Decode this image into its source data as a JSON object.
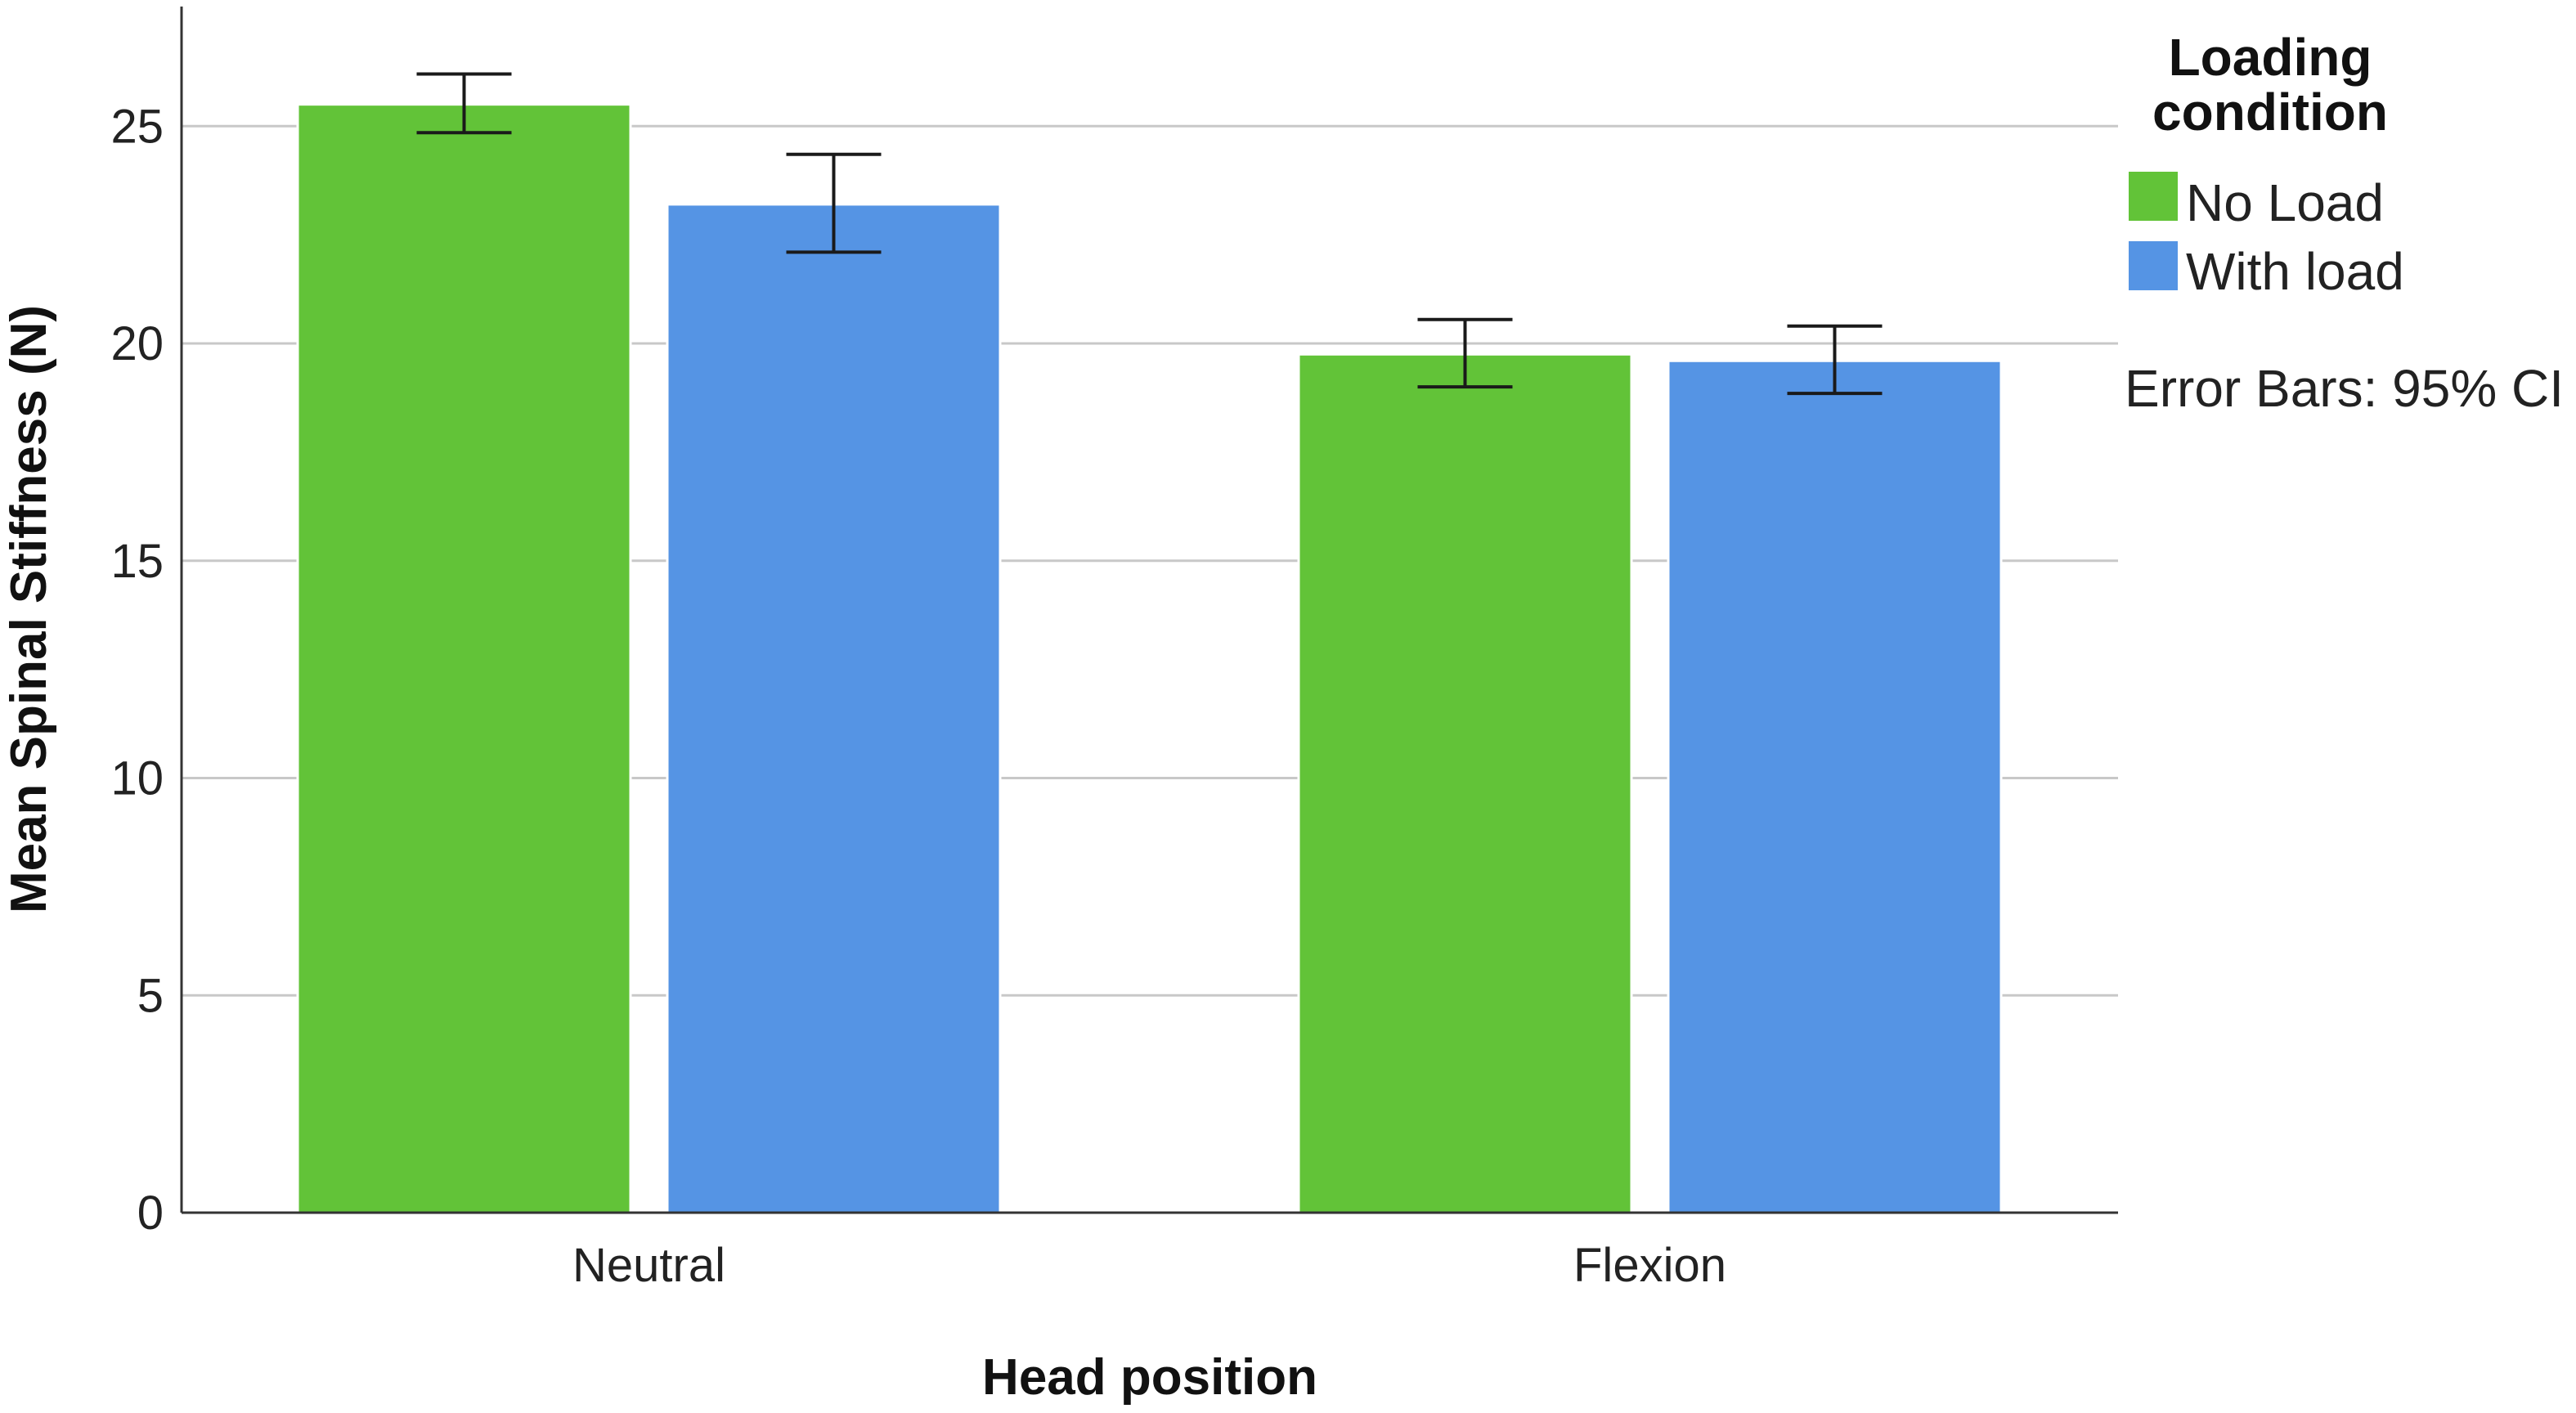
{
  "chart_data": {
    "type": "bar",
    "xlabel": "Head position",
    "ylabel": "Mean Spinal Stiffness (N)",
    "categories": [
      "Neutral",
      "Flexion"
    ],
    "ylim": [
      0,
      28
    ],
    "yticks": [
      "0",
      "5",
      "10",
      "15",
      "20",
      "25"
    ],
    "grid": true,
    "legend": {
      "title_lines": [
        "Loading",
        "condition"
      ],
      "placement": "top-right"
    },
    "series": [
      {
        "name": "No Load",
        "color": "#62c338",
        "values": [
          25.5,
          19.75
        ],
        "ci_low": [
          24.85,
          19.0
        ],
        "ci_high": [
          26.2,
          20.55
        ]
      },
      {
        "name": "With load",
        "color": "#5594e4",
        "values": [
          23.2,
          19.6
        ],
        "ci_low": [
          22.1,
          18.85
        ],
        "ci_high": [
          24.35,
          20.4
        ]
      }
    ],
    "note": "Error Bars: 95% CI"
  }
}
